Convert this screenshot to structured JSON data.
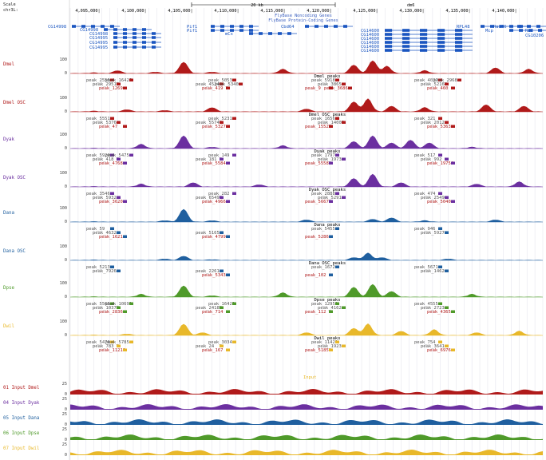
{
  "header": {
    "scale_label": "Scale",
    "scale_bar_text": "20 kb",
    "chrom_label": "chr3L:",
    "assembly": "dm6",
    "positions": [
      "4,095,000|",
      "4,100,000|",
      "4,105,000|",
      "4,110,000|",
      "4,115,000|",
      "4,120,000|",
      "4,125,000|",
      "4,130,000|",
      "4,135,000|",
      "4,140,000|"
    ],
    "track_title_noncoding": "FlyBase Noncoding Genes",
    "track_title_coding": "FlyBase Protein-Coding Genes"
  },
  "genes": [
    {
      "label": "CG14998"
    },
    {
      "label": "CG14998"
    },
    {
      "label": "CG14998"
    },
    {
      "label": "CG14995"
    },
    {
      "label": "CG14995"
    },
    {
      "label": "CG14995"
    },
    {
      "label": "Pif1"
    },
    {
      "label": "Pif1"
    },
    {
      "label": "mCx"
    },
    {
      "label": "Cbd64"
    },
    {
      "label": "CG14600"
    },
    {
      "label": "CG14600"
    },
    {
      "label": "CG14600"
    },
    {
      "label": "CG14600"
    },
    {
      "label": "CG14600"
    },
    {
      "label": "CG14600"
    },
    {
      "label": "RPL48"
    },
    {
      "label": "Rab46"
    },
    {
      "label": "Rad"
    },
    {
      "label": "CG10206"
    },
    {
      "label": "Mcp"
    }
  ],
  "tracks": [
    {
      "name": "Dmel",
      "color": "#b01a1a",
      "max": "100",
      "zero": "0",
      "profile": [
        [
          0.05,
          0.05
        ],
        [
          0.1,
          0.2
        ],
        [
          0.18,
          0.1
        ],
        [
          0.24,
          0.8
        ],
        [
          0.3,
          0.1
        ],
        [
          0.45,
          0.3
        ],
        [
          0.6,
          0.6
        ],
        [
          0.64,
          0.9
        ],
        [
          0.67,
          0.5
        ],
        [
          0.75,
          0.2
        ],
        [
          0.9,
          0.4
        ],
        [
          0.97,
          0.3
        ]
      ]
    },
    {
      "name": "Dmel OSC",
      "color": "#b01a1a",
      "max": "100",
      "zero": "0",
      "profile": [
        [
          0.05,
          0.05
        ],
        [
          0.12,
          0.15
        ],
        [
          0.2,
          0.1
        ],
        [
          0.3,
          0.3
        ],
        [
          0.5,
          0.2
        ],
        [
          0.6,
          0.7
        ],
        [
          0.63,
          0.9
        ],
        [
          0.68,
          0.4
        ],
        [
          0.75,
          0.3
        ],
        [
          0.88,
          0.5
        ],
        [
          0.96,
          0.4
        ]
      ]
    },
    {
      "name": "Dyak",
      "color": "#6b2fa0",
      "max": "100",
      "zero": "0",
      "profile": [
        [
          0.05,
          0.02
        ],
        [
          0.15,
          0.3
        ],
        [
          0.24,
          0.9
        ],
        [
          0.3,
          0.1
        ],
        [
          0.45,
          0.2
        ],
        [
          0.6,
          0.5
        ],
        [
          0.64,
          0.9
        ],
        [
          0.68,
          0.4
        ],
        [
          0.72,
          0.6
        ],
        [
          0.76,
          0.4
        ],
        [
          0.85,
          0.1
        ]
      ]
    },
    {
      "name": "Dyak OSC",
      "color": "#6b2fa0",
      "max": "100",
      "zero": "0",
      "profile": [
        [
          0.05,
          0.02
        ],
        [
          0.15,
          0.2
        ],
        [
          0.26,
          0.3
        ],
        [
          0.4,
          0.15
        ],
        [
          0.6,
          0.6
        ],
        [
          0.64,
          0.9
        ],
        [
          0.7,
          0.3
        ],
        [
          0.86,
          0.2
        ],
        [
          0.95,
          0.35
        ]
      ]
    },
    {
      "name": "Dana",
      "color": "#1f5f9f",
      "max": "100",
      "zero": "0",
      "profile": [
        [
          0.05,
          0.02
        ],
        [
          0.2,
          0.1
        ],
        [
          0.24,
          0.9
        ],
        [
          0.3,
          0.1
        ],
        [
          0.5,
          0.15
        ],
        [
          0.64,
          0.2
        ],
        [
          0.68,
          0.3
        ],
        [
          0.75,
          0.1
        ],
        [
          0.9,
          0.15
        ]
      ]
    },
    {
      "name": "Dana OSC",
      "color": "#1f5f9f",
      "max": "100",
      "zero": "0",
      "profile": [
        [
          0.05,
          0.02
        ],
        [
          0.2,
          0.1
        ],
        [
          0.24,
          0.3
        ],
        [
          0.3,
          0.05
        ],
        [
          0.6,
          0.2
        ],
        [
          0.63,
          0.5
        ],
        [
          0.66,
          0.2
        ],
        [
          0.8,
          0.1
        ]
      ]
    },
    {
      "name": "Dpse",
      "color": "#4f9a2a",
      "max": "100",
      "zero": "0",
      "profile": [
        [
          0.05,
          0.02
        ],
        [
          0.15,
          0.2
        ],
        [
          0.24,
          0.8
        ],
        [
          0.3,
          0.1
        ],
        [
          0.45,
          0.3
        ],
        [
          0.6,
          0.7
        ],
        [
          0.64,
          0.9
        ],
        [
          0.68,
          0.4
        ],
        [
          0.85,
          0.2
        ]
      ]
    },
    {
      "name": "Dwil",
      "color": "#e8b82a",
      "max": "100",
      "zero": "0",
      "profile": [
        [
          0.05,
          0.02
        ],
        [
          0.12,
          0.1
        ],
        [
          0.24,
          0.8
        ],
        [
          0.28,
          0.2
        ],
        [
          0.5,
          0.2
        ],
        [
          0.6,
          0.5
        ],
        [
          0.63,
          0.8
        ],
        [
          0.7,
          0.3
        ],
        [
          0.77,
          0.4
        ],
        [
          0.86,
          0.2
        ],
        [
          0.95,
          0.3
        ]
      ]
    }
  ],
  "peak_labels": [
    [
      "peak_2555",
      "peak_4524",
      "peak_9",
      "peak_4037",
      "peak_2951",
      "peak_419",
      "peak_5918",
      "peak_5216",
      "peak_1269",
      "peak_5053",
      "peak_3865",
      "peak_460",
      "peak_16426",
      "peak_5340",
      "peak_3686",
      "peak_2968"
    ],
    [
      "peak_5551",
      "peak_5574",
      "peak_1552",
      "peak_321",
      "peak_5376",
      "peak_5327",
      "peak_1656",
      "peak_2012",
      "peak_47",
      "peak_5231",
      "peak_14008",
      "peak_5363"
    ],
    [
      "peak_5920",
      "peak_181",
      "peak_5558",
      "peak_517",
      "peak_418",
      "peak_5584",
      "peak_1797",
      "peak_992",
      "peak_4768",
      "peak_149",
      "peak_1973",
      "peak_19754",
      "peak_5475"
    ],
    [
      "peak_3546",
      "peak_6549",
      "peak_5667",
      "peak_474",
      "peak_5932",
      "peak_4966",
      "peak_2888",
      "peak_2549",
      "peak_3620",
      "peak_282",
      "peak_5291",
      "peak_5040"
    ],
    [
      "peak_59",
      "peak_5165",
      "peak_5286",
      "peak_946",
      "peak_4632",
      "peak_4799",
      "peak_5455",
      "peak_5927",
      "peak_1621"
    ],
    [
      "peak_5213",
      "peak_2261",
      "peak_102",
      "peak_5671",
      "peak_7926",
      "peak_5343",
      "peak_1672",
      "peak_1462"
    ],
    [
      "peak_5565",
      "peak_2418",
      "peak_112",
      "peak_4555",
      "peak_1037",
      "peak_714",
      "peak_12959",
      "peak_2723",
      "peak_2836",
      "peak_16429",
      "peak_4162",
      "peak_4365",
      "peak_10691"
    ],
    [
      "peak_5476",
      "peak_24",
      "peak_5185",
      "peak_754",
      "peak_783",
      "peak_167",
      "peak_11421",
      "peak_3641",
      "peak_11210",
      "peak_3034",
      "peak_1923",
      "peak_6976",
      "peak_5785"
    ]
  ],
  "peak_track_titles": [
    "Dmel peaks",
    "Dmel OSC peaks",
    "Dyak peaks",
    "Dyak OSC peaks",
    "Dana peaks",
    "Dana OSC peaks",
    "Dpse peaks",
    "Dwil peaks"
  ],
  "inputs": [
    {
      "name": "01 Input Dmel",
      "color": "#b01a1a",
      "max": "25",
      "zero": "0"
    },
    {
      "name": "04 Input Dyak",
      "color": "#6b2fa0",
      "max": "25",
      "zero": "0"
    },
    {
      "name": "05 Input Dana",
      "color": "#1f5f9f",
      "max": "25",
      "zero": "0"
    },
    {
      "name": "06 Input Dpse",
      "color": "#4f9a2a",
      "max": "25",
      "zero": "0"
    },
    {
      "name": "07 Input Dwil",
      "color": "#e8b82a",
      "max": "25",
      "zero": "0"
    }
  ],
  "input_label": "Input"
}
